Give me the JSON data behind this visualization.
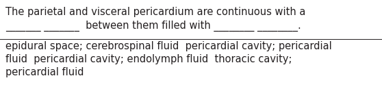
{
  "bg_color": "#ffffff",
  "text_color": "#231f20",
  "line1": "The parietal and visceral pericardium are continuous with a",
  "line2_prefix": "_______ _______  between them filled with ________ ________.",
  "sep_line_color": "#231f20",
  "answers": [
    "epidural space; cerebrospinal fluid  pericardial cavity; pericardial",
    "fluid  pericardial cavity; endolymph fluid  thoracic cavity;",
    "pericardial fluid"
  ],
  "font_size": 10.5,
  "fig_width": 5.58,
  "fig_height": 1.46,
  "dpi": 100
}
